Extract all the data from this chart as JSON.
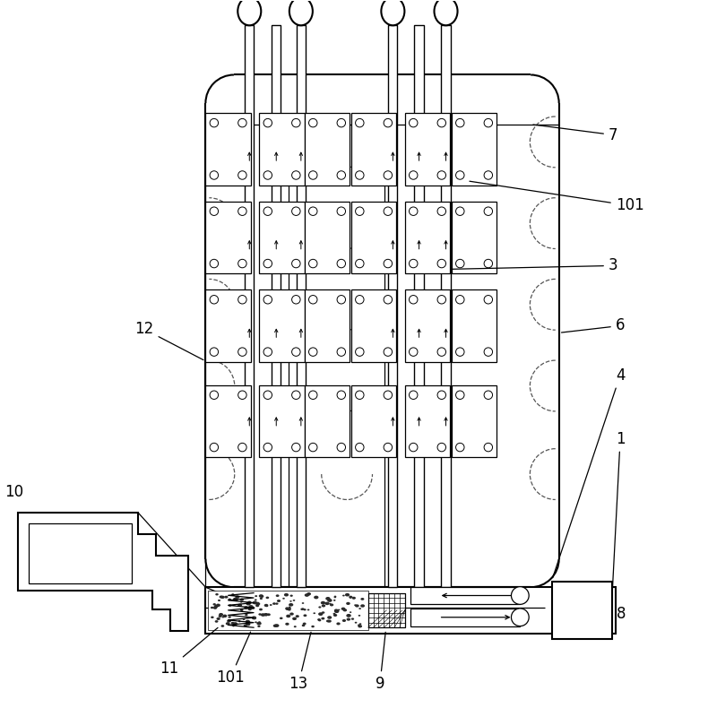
{
  "bg_color": "#ffffff",
  "line_color": "#000000",
  "figsize": [
    7.9,
    7.9
  ],
  "dpi": 100,
  "lw_main": 1.5,
  "lw_thin": 0.9,
  "lw_dash": 0.9,
  "label_fs": 12
}
